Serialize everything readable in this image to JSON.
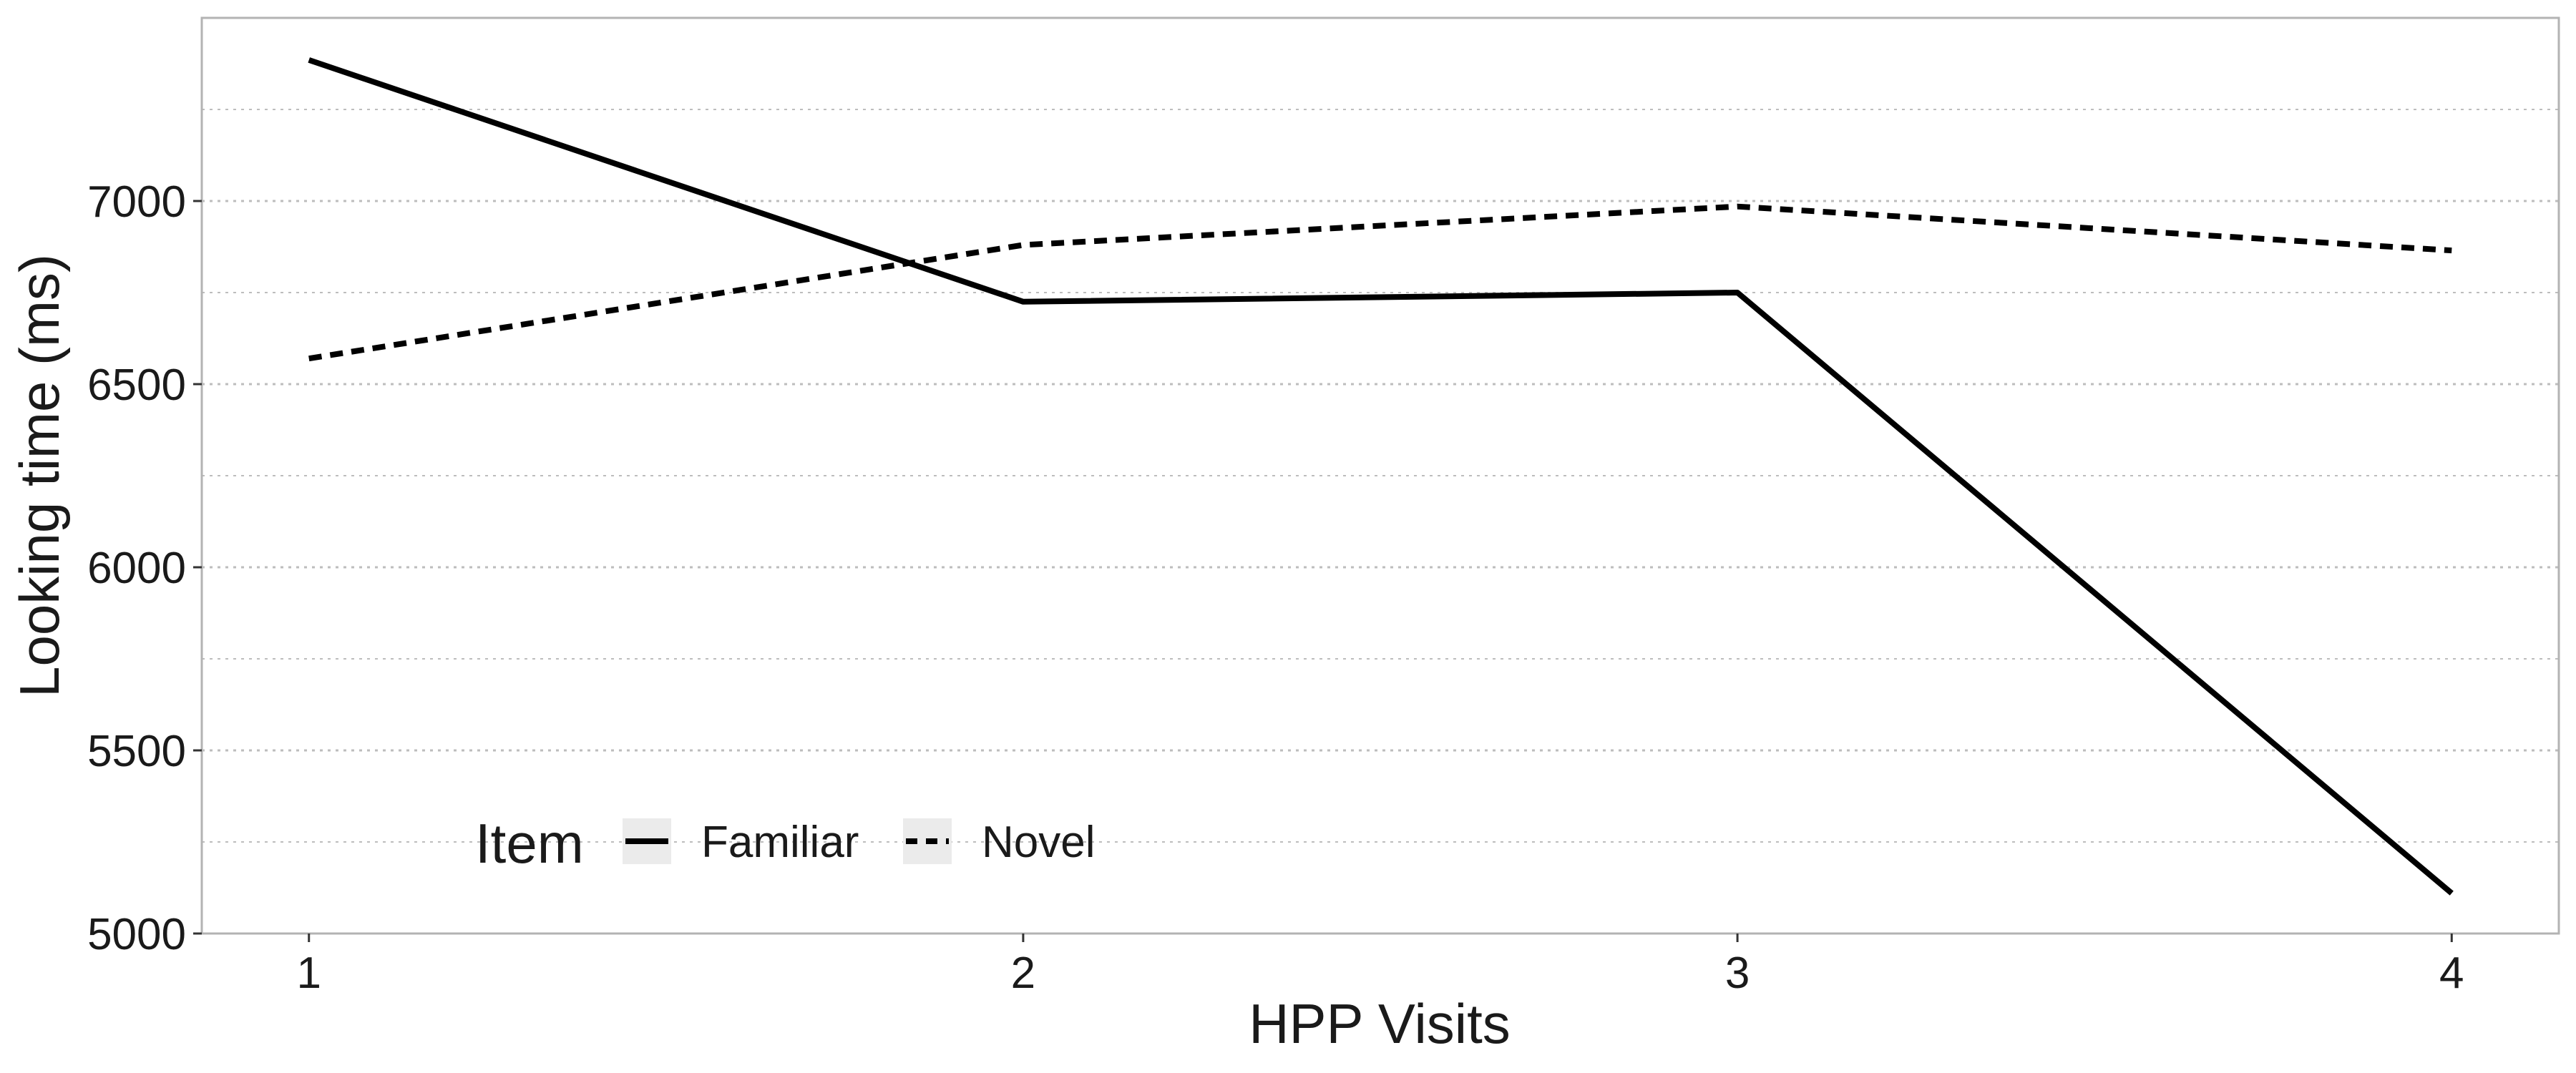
{
  "chart_data": {
    "type": "line",
    "x": [
      1,
      2,
      3,
      4
    ],
    "x_ticks": [
      "1",
      "2",
      "3",
      "4"
    ],
    "xlim": [
      0.85,
      4.15
    ],
    "xlabel": "HPP Visits",
    "ylabel": "Looking time (ms)",
    "ylim": [
      5000,
      7500
    ],
    "y_ticks": [
      5000,
      5500,
      6000,
      6500,
      7000
    ],
    "y_tick_labels": [
      "5000",
      "5500",
      "6000",
      "6500",
      "7000"
    ],
    "y_minor_gridlines": [
      5250,
      5750,
      6250,
      6750,
      7250
    ],
    "grid": "horizontal dotted",
    "legend": {
      "title": "Item",
      "placement": "bottom-left inside"
    },
    "series": [
      {
        "name": "Familiar",
        "linestyle": "solid",
        "color": "#000000",
        "values": [
          7385,
          6725,
          6750,
          5110
        ]
      },
      {
        "name": "Novel",
        "linestyle": "dashed",
        "color": "#000000",
        "values": [
          6570,
          6880,
          6985,
          6865
        ]
      }
    ],
    "colors": {
      "panel_border": "#b3b3b3",
      "gridline": "#bdbdbd",
      "legend_key_bg": "#ebebeb"
    }
  }
}
